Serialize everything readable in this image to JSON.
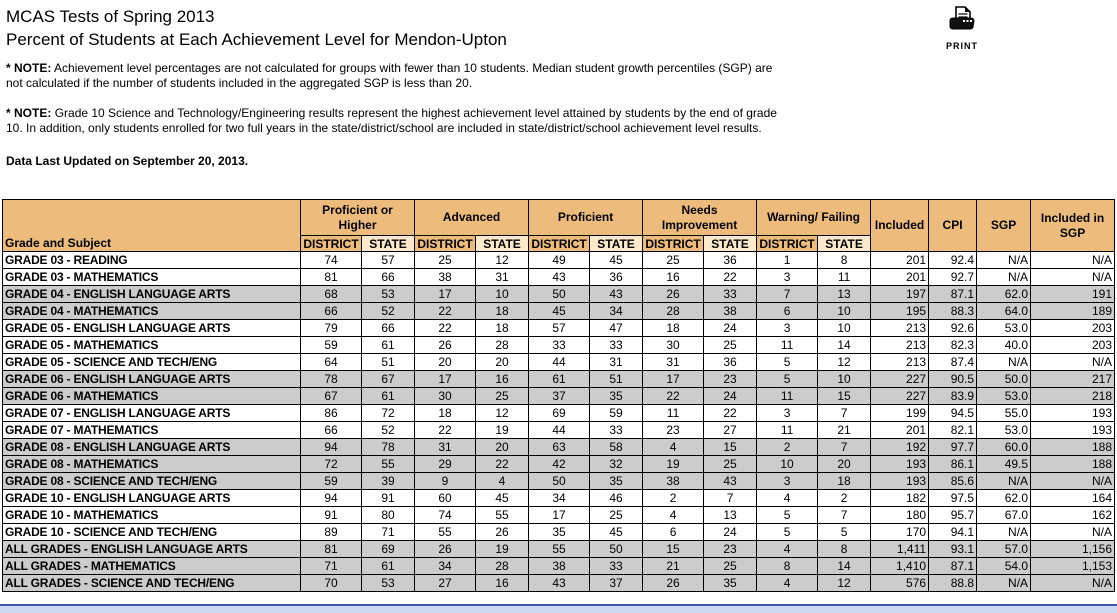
{
  "header": {
    "title_line1": "MCAS Tests of Spring 2013",
    "title_line2": "Percent of Students at Each Achievement Level for Mendon-Upton",
    "print_label": "PRINT"
  },
  "notes": [
    {
      "prefix": "* NOTE:",
      "text": "Achievement level percentages are not calculated for groups with fewer than 10 students. Median student growth percentiles (SGP) are not calculated if the number of students included in the aggregated SGP is less than 20."
    },
    {
      "prefix": "* NOTE:",
      "text": "Grade 10 Science and Technology/Engineering results represent the highest achievement level attained by students by the end of grade 10. In addition, only students enrolled for two full years in the state/district/school are included in state/district/school achievement level results."
    }
  ],
  "last_updated": "Data Last Updated on September 20, 2013.",
  "table": {
    "corner_header": "Grade and Subject",
    "group_headers": [
      {
        "label": "Proficient or Higher"
      },
      {
        "label": "Advanced"
      },
      {
        "label": "Proficient"
      },
      {
        "label": "Needs Improvement"
      },
      {
        "label": "Warning/ Failing"
      }
    ],
    "sub_headers": {
      "district": "DISTRICT",
      "state": "STATE"
    },
    "tail_headers": [
      {
        "label": "Included"
      },
      {
        "label": "CPI"
      },
      {
        "label": "SGP"
      },
      {
        "label": "Included in SGP"
      }
    ],
    "rows": [
      {
        "label": "GRADE 03 - READING",
        "shaded": false,
        "values": [
          "74",
          "57",
          "25",
          "12",
          "49",
          "45",
          "25",
          "36",
          "1",
          "8",
          "201",
          "92.4",
          "N/A",
          "N/A"
        ]
      },
      {
        "label": "GRADE 03 - MATHEMATICS",
        "shaded": false,
        "values": [
          "81",
          "66",
          "38",
          "31",
          "43",
          "36",
          "16",
          "22",
          "3",
          "11",
          "201",
          "92.7",
          "N/A",
          "N/A"
        ]
      },
      {
        "label": "GRADE 04 - ENGLISH LANGUAGE ARTS",
        "shaded": true,
        "values": [
          "68",
          "53",
          "17",
          "10",
          "50",
          "43",
          "26",
          "33",
          "7",
          "13",
          "197",
          "87.1",
          "62.0",
          "191"
        ]
      },
      {
        "label": "GRADE 04 - MATHEMATICS",
        "shaded": true,
        "values": [
          "66",
          "52",
          "22",
          "18",
          "45",
          "34",
          "28",
          "38",
          "6",
          "10",
          "195",
          "88.3",
          "64.0",
          "189"
        ]
      },
      {
        "label": "GRADE 05 - ENGLISH LANGUAGE ARTS",
        "shaded": false,
        "values": [
          "79",
          "66",
          "22",
          "18",
          "57",
          "47",
          "18",
          "24",
          "3",
          "10",
          "213",
          "92.6",
          "53.0",
          "203"
        ]
      },
      {
        "label": "GRADE 05 - MATHEMATICS",
        "shaded": false,
        "values": [
          "59",
          "61",
          "26",
          "28",
          "33",
          "33",
          "30",
          "25",
          "11",
          "14",
          "213",
          "82.3",
          "40.0",
          "203"
        ]
      },
      {
        "label": "GRADE 05 - SCIENCE AND TECH/ENG",
        "shaded": false,
        "values": [
          "64",
          "51",
          "20",
          "20",
          "44",
          "31",
          "31",
          "36",
          "5",
          "12",
          "213",
          "87.4",
          "N/A",
          "N/A"
        ]
      },
      {
        "label": "GRADE 06 - ENGLISH LANGUAGE ARTS",
        "shaded": true,
        "values": [
          "78",
          "67",
          "17",
          "16",
          "61",
          "51",
          "17",
          "23",
          "5",
          "10",
          "227",
          "90.5",
          "50.0",
          "217"
        ]
      },
      {
        "label": "GRADE 06 - MATHEMATICS",
        "shaded": true,
        "values": [
          "67",
          "61",
          "30",
          "25",
          "37",
          "35",
          "22",
          "24",
          "11",
          "15",
          "227",
          "83.9",
          "53.0",
          "218"
        ]
      },
      {
        "label": "GRADE 07 - ENGLISH LANGUAGE ARTS",
        "shaded": false,
        "values": [
          "86",
          "72",
          "18",
          "12",
          "69",
          "59",
          "11",
          "22",
          "3",
          "7",
          "199",
          "94.5",
          "55.0",
          "193"
        ]
      },
      {
        "label": "GRADE 07 - MATHEMATICS",
        "shaded": false,
        "values": [
          "66",
          "52",
          "22",
          "19",
          "44",
          "33",
          "23",
          "27",
          "11",
          "21",
          "201",
          "82.1",
          "53.0",
          "193"
        ]
      },
      {
        "label": "GRADE 08 - ENGLISH LANGUAGE ARTS",
        "shaded": true,
        "values": [
          "94",
          "78",
          "31",
          "20",
          "63",
          "58",
          "4",
          "15",
          "2",
          "7",
          "192",
          "97.7",
          "60.0",
          "188"
        ]
      },
      {
        "label": "GRADE 08 - MATHEMATICS",
        "shaded": true,
        "values": [
          "72",
          "55",
          "29",
          "22",
          "42",
          "32",
          "19",
          "25",
          "10",
          "20",
          "193",
          "86.1",
          "49.5",
          "188"
        ]
      },
      {
        "label": "GRADE 08 - SCIENCE AND TECH/ENG",
        "shaded": true,
        "values": [
          "59",
          "39",
          "9",
          "4",
          "50",
          "35",
          "38",
          "43",
          "3",
          "18",
          "193",
          "85.6",
          "N/A",
          "N/A"
        ]
      },
      {
        "label": "GRADE 10 - ENGLISH LANGUAGE ARTS",
        "shaded": false,
        "values": [
          "94",
          "91",
          "60",
          "45",
          "34",
          "46",
          "2",
          "7",
          "4",
          "2",
          "182",
          "97.5",
          "62.0",
          "164"
        ]
      },
      {
        "label": "GRADE 10 - MATHEMATICS",
        "shaded": false,
        "values": [
          "91",
          "80",
          "74",
          "55",
          "17",
          "25",
          "4",
          "13",
          "5",
          "7",
          "180",
          "95.7",
          "67.0",
          "162"
        ]
      },
      {
        "label": "GRADE 10 - SCIENCE AND TECH/ENG",
        "shaded": false,
        "values": [
          "89",
          "71",
          "55",
          "26",
          "35",
          "45",
          "6",
          "24",
          "5",
          "5",
          "170",
          "94.1",
          "N/A",
          "N/A"
        ]
      },
      {
        "label": "ALL GRADES - ENGLISH LANGUAGE ARTS",
        "shaded": true,
        "values": [
          "81",
          "69",
          "26",
          "19",
          "55",
          "50",
          "15",
          "23",
          "4",
          "8",
          "1,411",
          "93.1",
          "57.0",
          "1,156"
        ]
      },
      {
        "label": "ALL GRADES - MATHEMATICS",
        "shaded": true,
        "values": [
          "71",
          "61",
          "34",
          "28",
          "38",
          "33",
          "21",
          "25",
          "8",
          "14",
          "1,410",
          "87.1",
          "54.0",
          "1,153"
        ]
      },
      {
        "label": "ALL GRADES - SCIENCE AND TECH/ENG",
        "shaded": true,
        "values": [
          "70",
          "53",
          "27",
          "16",
          "43",
          "37",
          "26",
          "35",
          "4",
          "12",
          "576",
          "88.8",
          "N/A",
          "N/A"
        ]
      }
    ]
  },
  "colors": {
    "header_bg": "#EDBC7D",
    "state_subheader_bg": "#FCE8CB",
    "shaded_row_bg": "#CCCCCC",
    "footer_bar_bg": "#CDD9F0",
    "footer_bar_border": "#3A57A7"
  }
}
